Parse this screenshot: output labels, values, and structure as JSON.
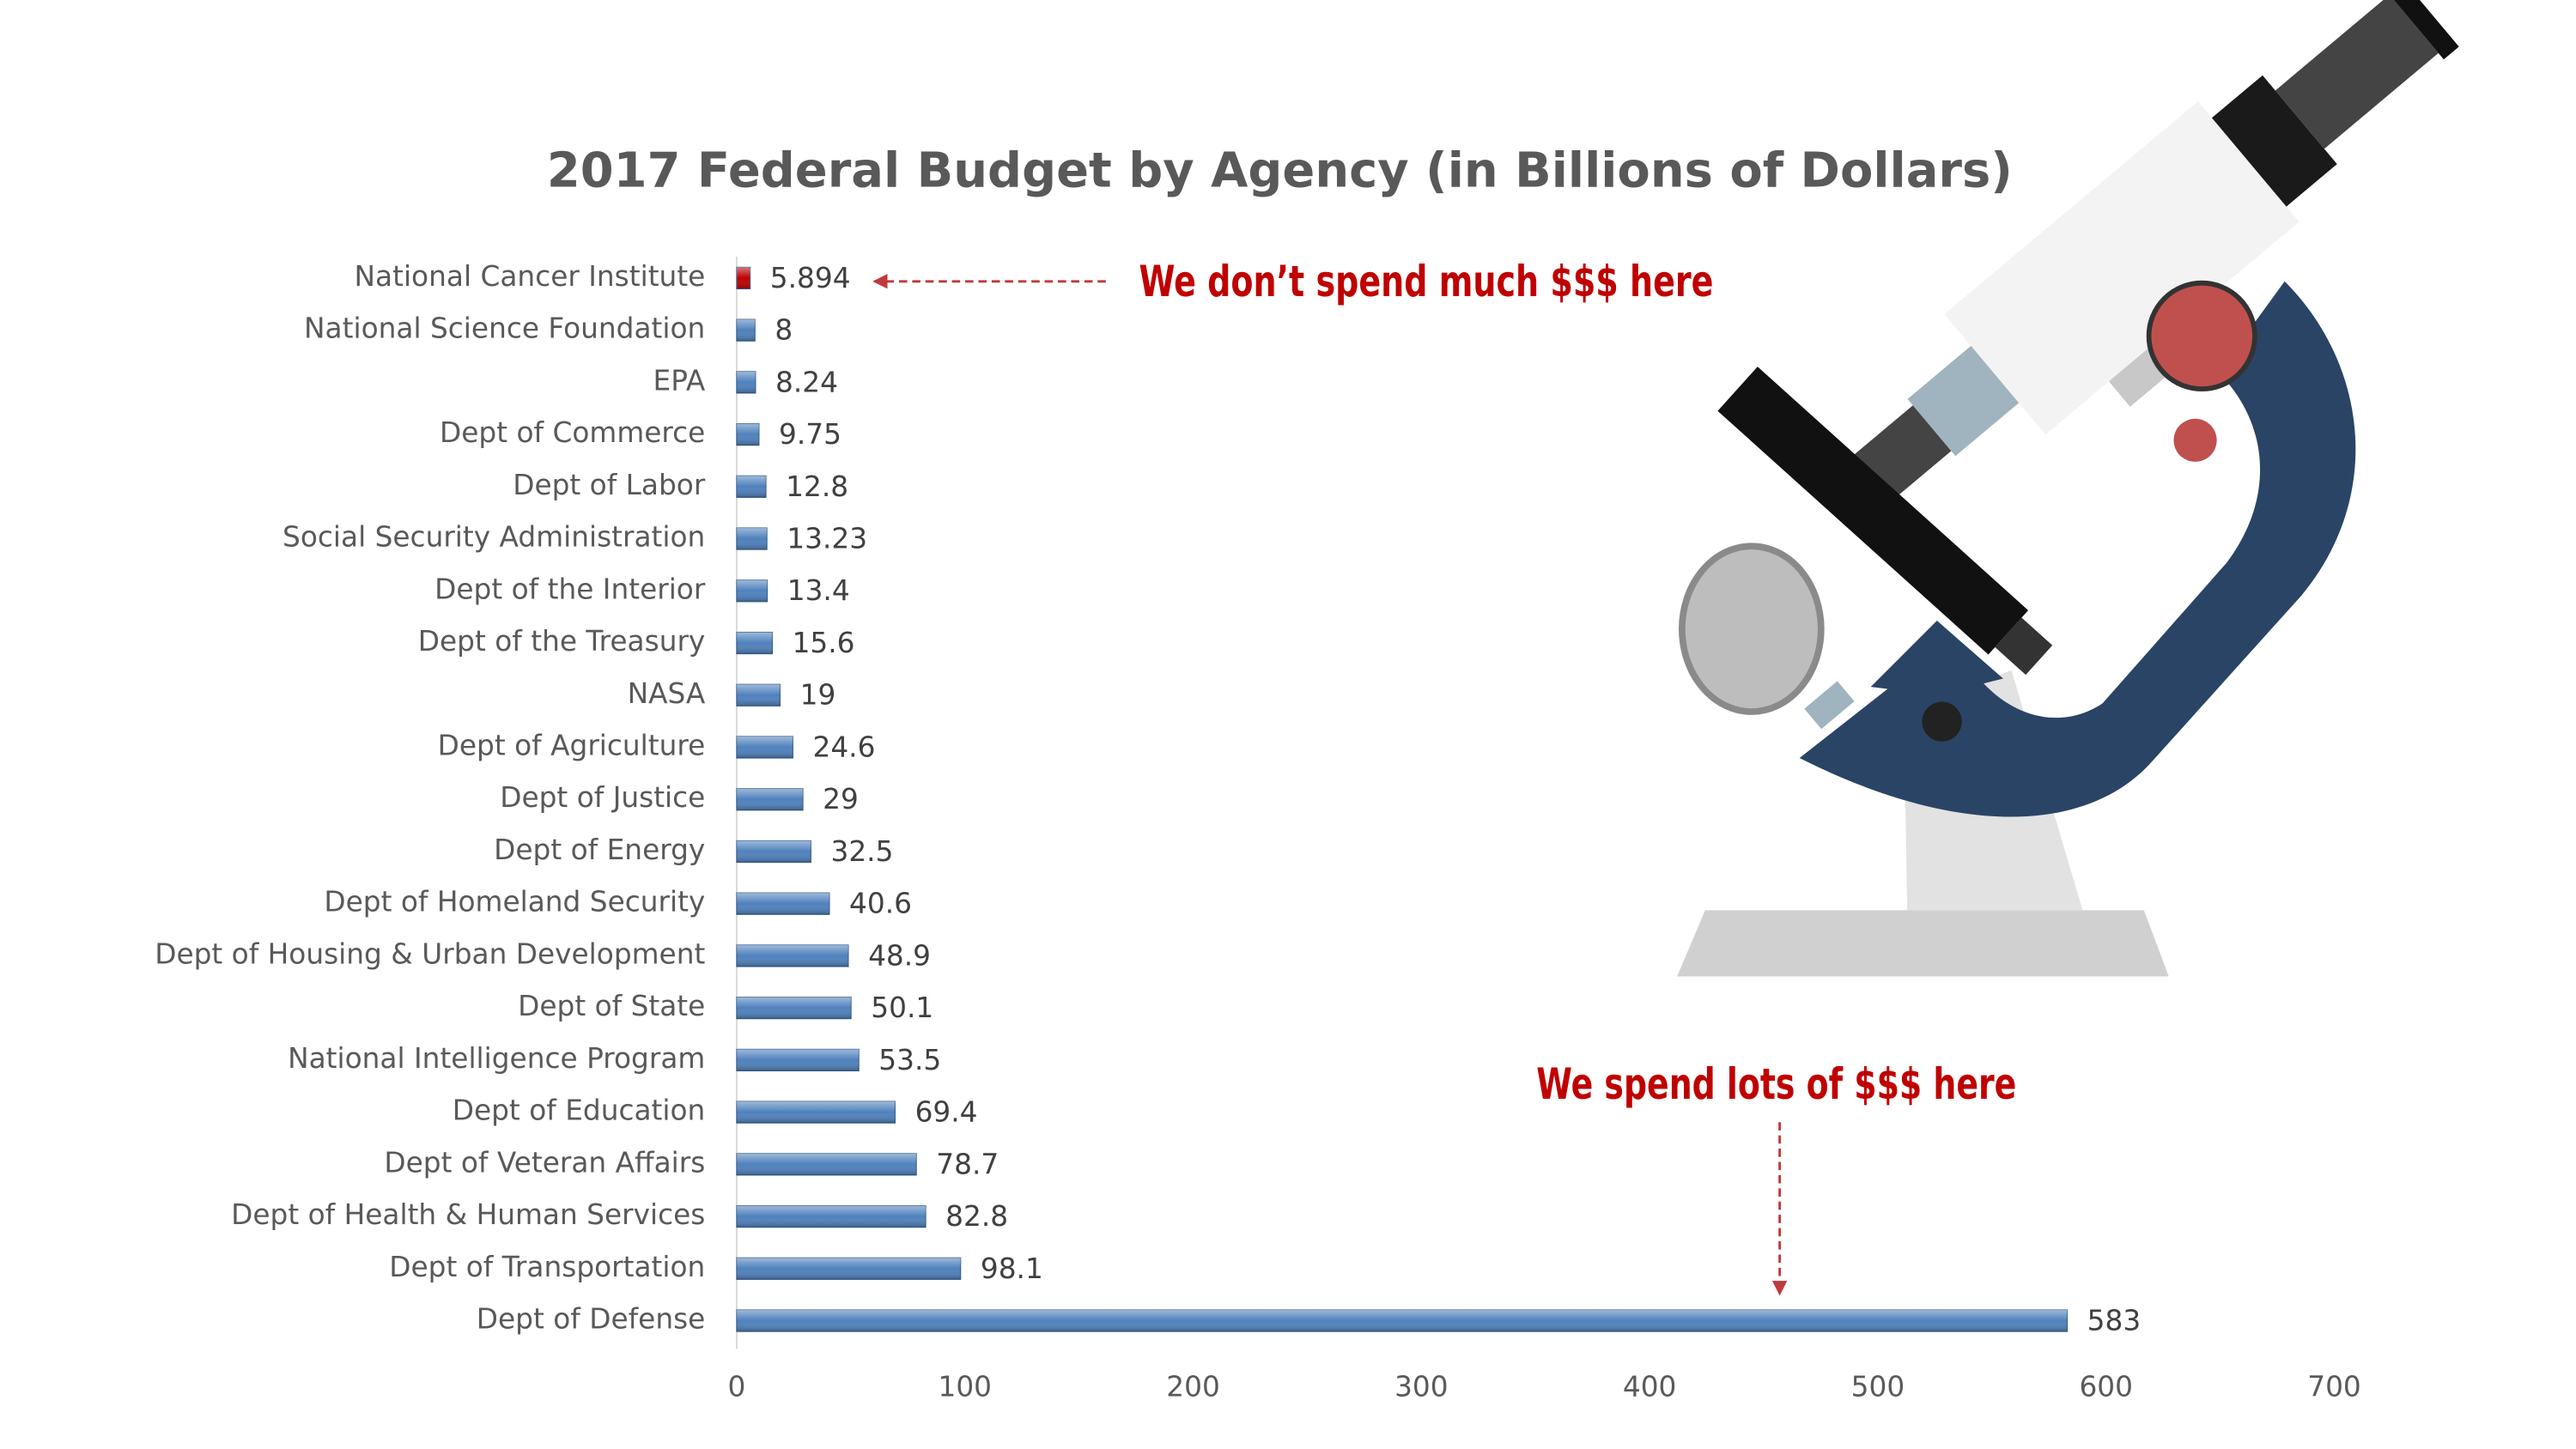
{
  "chart_data": {
    "type": "bar",
    "orientation": "horizontal",
    "title": "2017 Federal Budget by Agency (in Billions of Dollars)",
    "categories": [
      "National Cancer Institute",
      "National Science Foundation",
      "EPA",
      "Dept of Commerce",
      "Dept of Labor",
      "Social Security Administration",
      "Dept of the Interior",
      "Dept of the Treasury",
      "NASA",
      "Dept of Agriculture",
      "Dept of Justice",
      "Dept of Energy",
      "Dept of Homeland Security",
      "Dept of Housing & Urban Development",
      "Dept of State",
      "National Intelligence Program",
      "Dept of Education",
      "Dept of Veteran Affairs",
      "Dept of Health & Human Services",
      "Dept of Transportation",
      "Dept of Defense"
    ],
    "values": [
      5.894,
      8,
      8.24,
      9.75,
      12.8,
      13.23,
      13.4,
      15.6,
      19,
      24.6,
      29,
      32.5,
      40.6,
      48.9,
      50.1,
      53.5,
      69.4,
      78.7,
      82.8,
      98.1,
      583
    ],
    "colors": [
      "#c00000",
      "#4f81bd",
      "#4f81bd",
      "#4f81bd",
      "#4f81bd",
      "#4f81bd",
      "#4f81bd",
      "#4f81bd",
      "#4f81bd",
      "#4f81bd",
      "#4f81bd",
      "#4f81bd",
      "#4f81bd",
      "#4f81bd",
      "#4f81bd",
      "#4f81bd",
      "#4f81bd",
      "#4f81bd",
      "#4f81bd",
      "#4f81bd",
      "#4f81bd"
    ],
    "xlim": [
      0,
      700
    ],
    "xticks": [
      0,
      100,
      200,
      300,
      400,
      500,
      600,
      700
    ],
    "grid": false,
    "annotations": [
      "We don’t spend much $$$ here",
      "We spend lots of $$$ here"
    ]
  }
}
